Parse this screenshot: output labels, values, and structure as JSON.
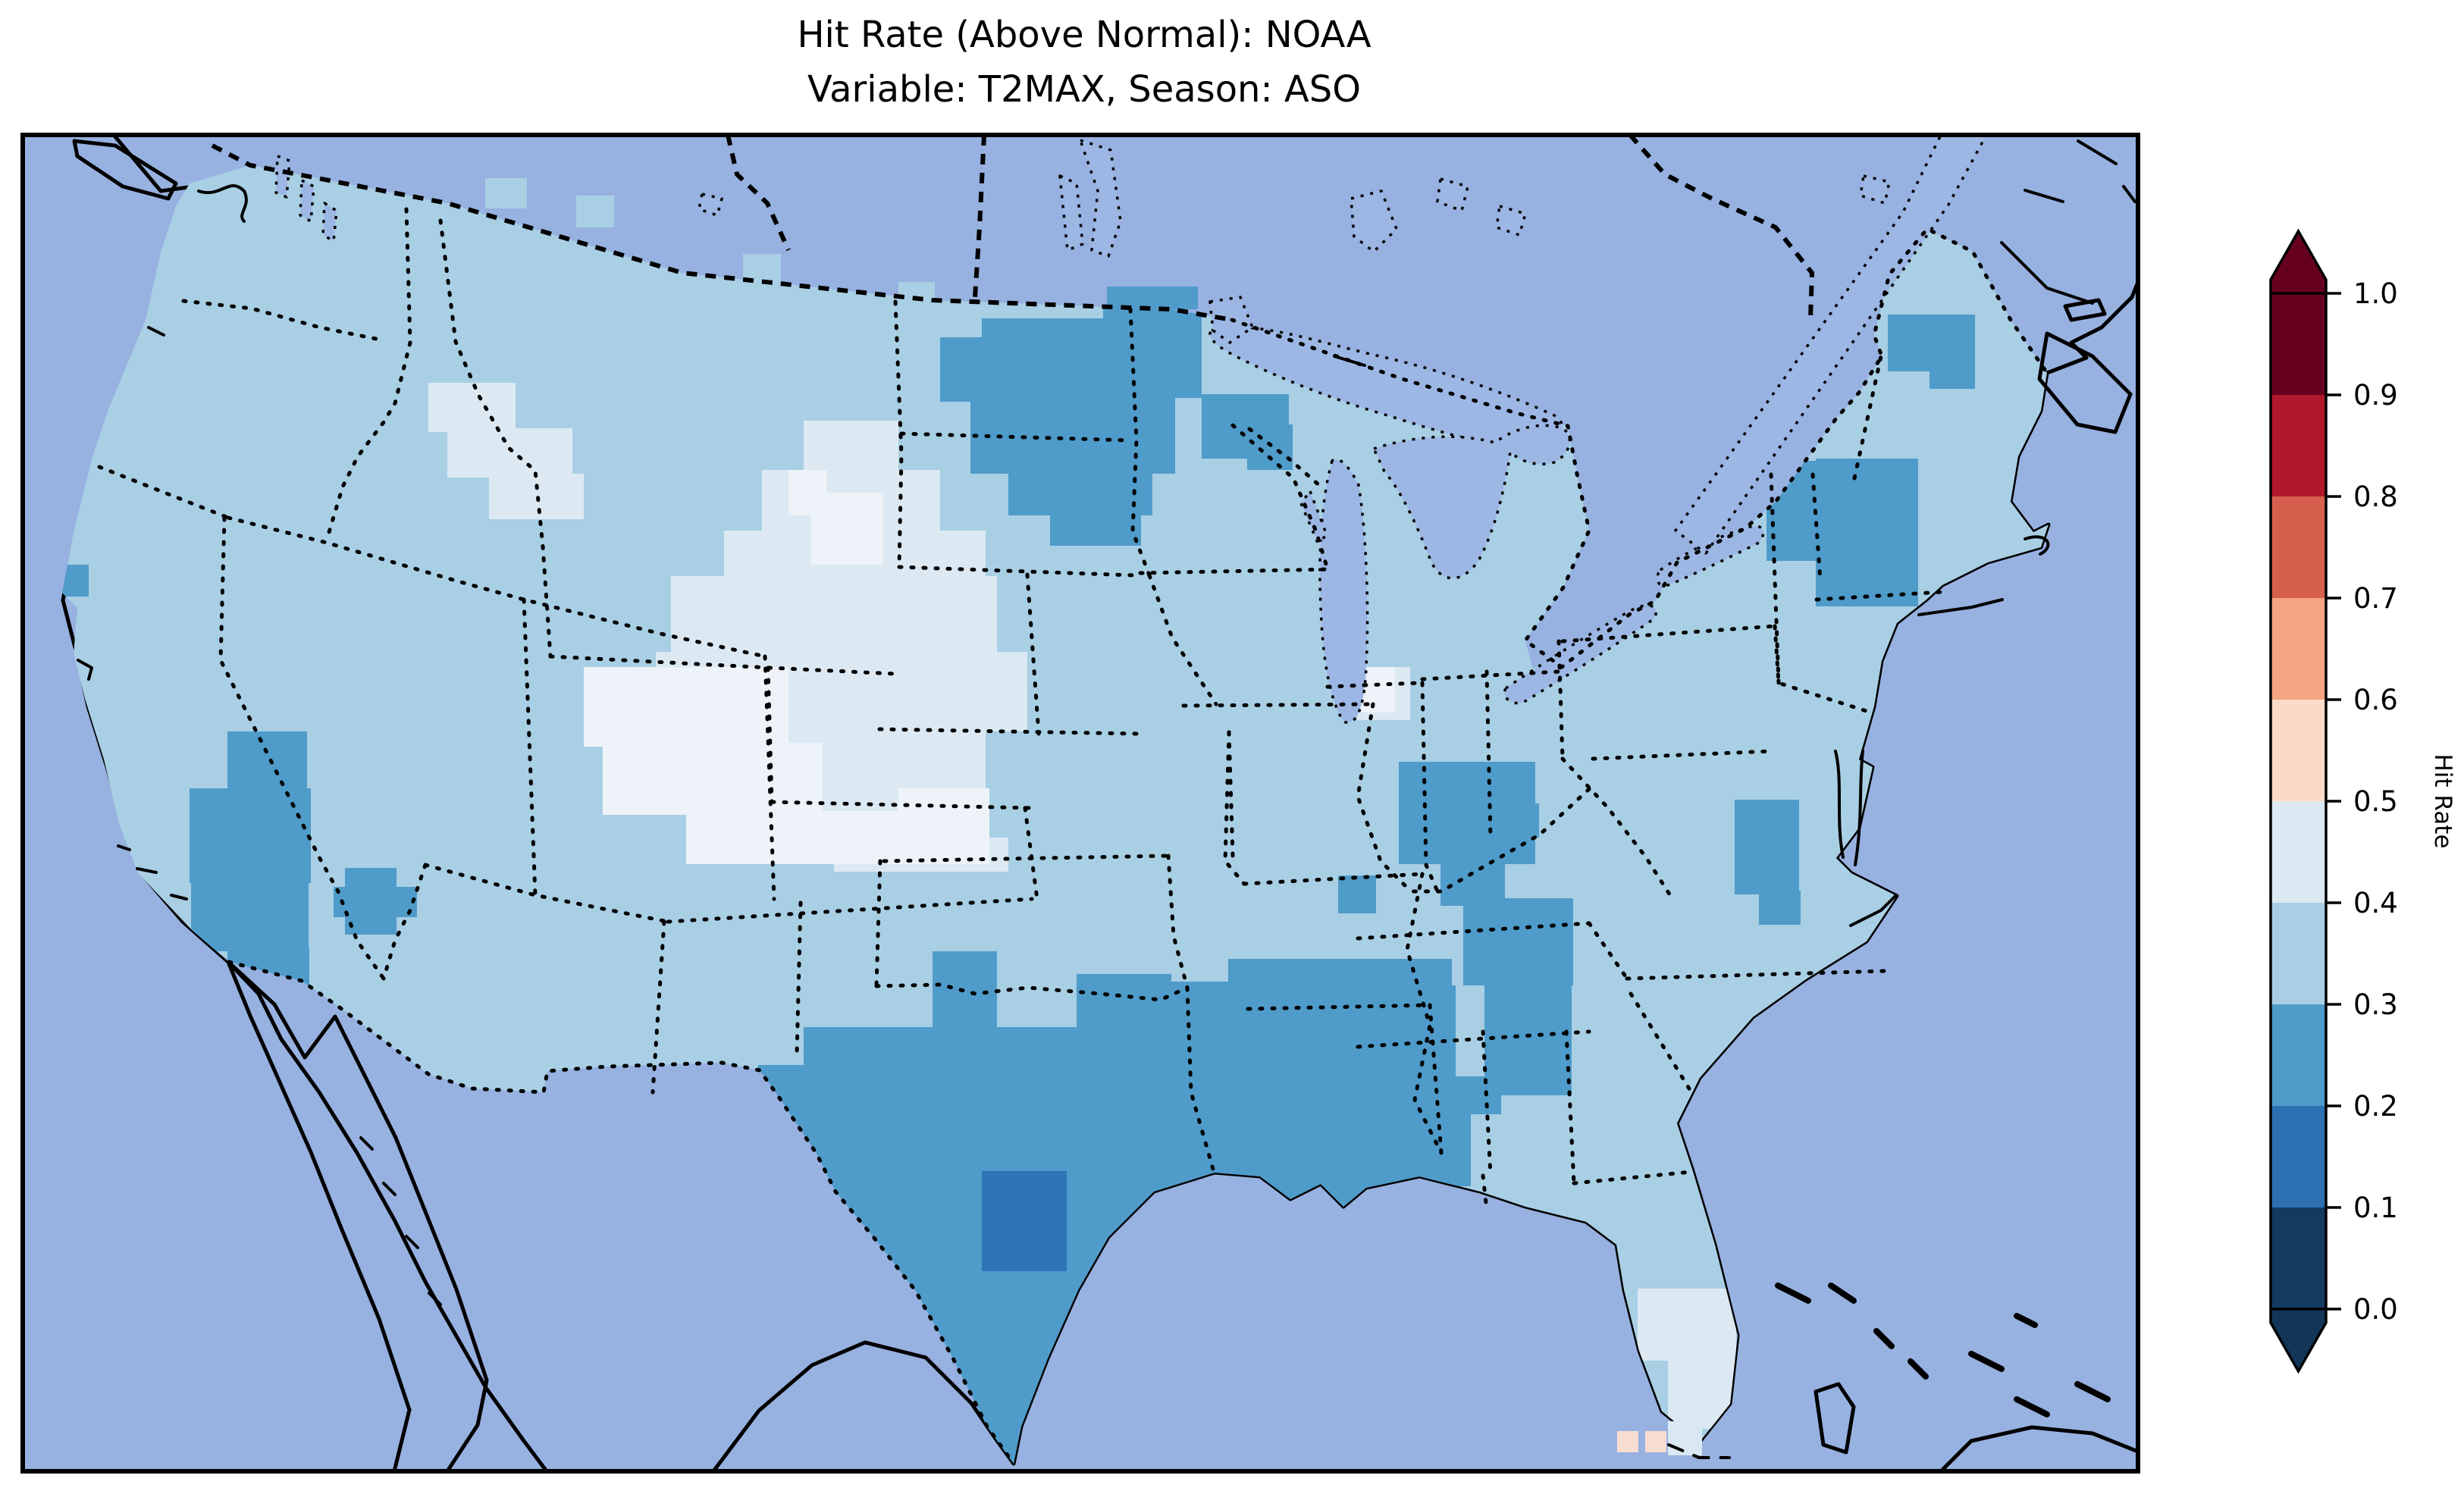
{
  "title": {
    "line1": "Hit Rate (Above Normal): NOAA",
    "line2": "Variable: T2MAX, Season: ASO"
  },
  "colorbar": {
    "label": "Hit Rate",
    "ticks": [
      "1.0",
      "0.9",
      "0.8",
      "0.7",
      "0.6",
      "0.5",
      "0.4",
      "0.3",
      "0.2",
      "0.1",
      "0.0"
    ],
    "segments": [
      {
        "range": "0.9-1.0",
        "color": "#67001f"
      },
      {
        "range": "0.8-0.9",
        "color": "#b2182b"
      },
      {
        "range": "0.7-0.8",
        "color": "#d6604d"
      },
      {
        "range": "0.6-0.7",
        "color": "#f4a582"
      },
      {
        "range": "0.5-0.6",
        "color": "#fbdbc7"
      },
      {
        "range": "0.4-0.5",
        "color": "#dce9f2"
      },
      {
        "range": "0.3-0.4",
        "color": "#a9cfe4"
      },
      {
        "range": "0.2-0.3",
        "color": "#4f9bca"
      },
      {
        "range": "0.1-0.2",
        "color": "#2d70b2"
      },
      {
        "range": "0.0-0.1",
        "color": "#133a61"
      }
    ],
    "extend_over_color": "#67001f",
    "extend_under_color": "#123658"
  },
  "map": {
    "colors": {
      "ocean": "#97b1e0",
      "land": "#f1eedb",
      "lakes": "#9db7e4",
      "frame": "#000000",
      "conus_base": "#a9cfe4"
    }
  },
  "chart_data": {
    "type": "heatmap",
    "title": "Hit Rate (Above Normal): NOAA",
    "subtitle": "Variable: T2MAX, Season: ASO",
    "metric": "Hit Rate (Above Normal)",
    "source": "NOAA",
    "variable": "T2MAX",
    "season": "ASO",
    "colorbar_label": "Hit Rate",
    "colorbar_range": [
      0.0,
      1.0
    ],
    "colorbar_tick_step": 0.1,
    "legend_position": "right",
    "bins": [
      {
        "range": [
          0.0,
          0.1
        ],
        "color": "#133a61"
      },
      {
        "range": [
          0.1,
          0.2
        ],
        "color": "#2d70b2"
      },
      {
        "range": [
          0.2,
          0.3
        ],
        "color": "#4f9bca"
      },
      {
        "range": [
          0.3,
          0.4
        ],
        "color": "#a9cfe4"
      },
      {
        "range": [
          0.4,
          0.5
        ],
        "color": "#dce9f2"
      },
      {
        "range": [
          0.5,
          0.6
        ],
        "color": "#fbdbc7"
      },
      {
        "range": [
          0.6,
          0.7
        ],
        "color": "#f4a582"
      },
      {
        "range": [
          0.7,
          0.8
        ],
        "color": "#d6604d"
      },
      {
        "range": [
          0.8,
          0.9
        ],
        "color": "#b2182b"
      },
      {
        "range": [
          0.9,
          1.0
        ],
        "color": "#67001f"
      }
    ],
    "base_region": {
      "name": "conus-most-areas",
      "hit_rate_bin": [
        0.3,
        0.4
      ],
      "color": "#a9cfe4"
    },
    "regions": [
      {
        "name": "northern-rockies-idaho-montana",
        "hit_rate_bin": [
          0.4,
          0.5
        ],
        "color": "#dce9f2",
        "clip": true,
        "rects": [
          [
            565,
            505,
            115,
            65
          ],
          [
            590,
            565,
            165,
            65
          ],
          [
            645,
            625,
            125,
            60
          ],
          [
            700,
            640,
            60,
            45
          ]
        ]
      },
      {
        "name": "central-plains-pale",
        "hit_rate_bin": [
          0.4,
          0.5
        ],
        "color": "#dce9f2",
        "clip": true,
        "rects": [
          [
            1060,
            555,
            125,
            70
          ],
          [
            1005,
            620,
            235,
            95
          ],
          [
            955,
            700,
            345,
            65
          ],
          [
            885,
            760,
            430,
            105
          ],
          [
            865,
            860,
            490,
            105
          ],
          [
            900,
            960,
            400,
            85
          ],
          [
            950,
            1040,
            330,
            70
          ],
          [
            1100,
            1105,
            230,
            45
          ],
          [
            1790,
            880,
            70,
            70
          ]
        ]
      },
      {
        "name": "plains-core-palest",
        "hit_rate_bin": [
          0.4,
          0.5
        ],
        "color": "#edf3f8",
        "clip": true,
        "rects": [
          [
            770,
            880,
            270,
            105
          ],
          [
            795,
            980,
            290,
            95
          ],
          [
            905,
            1070,
            400,
            70
          ],
          [
            1185,
            1040,
            120,
            95
          ],
          [
            1070,
            650,
            95,
            95
          ],
          [
            1040,
            620,
            50,
            60
          ],
          [
            1780,
            880,
            60,
            60
          ]
        ]
      },
      {
        "name": "south-florida-pale",
        "hit_rate_bin": [
          0.4,
          0.5
        ],
        "color": "#dce9f2",
        "clip": true,
        "rects": [
          [
            2160,
            1700,
            105,
            95
          ],
          [
            2200,
            1790,
            95,
            95
          ],
          [
            2120,
            1785,
            45,
            45
          ],
          [
            2250,
            1700,
            40,
            90
          ]
        ]
      },
      {
        "name": "minnesota-eastern-dakotas",
        "hit_rate_bin": [
          0.2,
          0.3
        ],
        "color": "#4f9bca",
        "clip": true,
        "rects": [
          [
            1455,
            385,
            130,
            65
          ],
          [
            1295,
            420,
            290,
            105
          ],
          [
            1240,
            445,
            100,
            85
          ],
          [
            1280,
            525,
            270,
            100
          ],
          [
            1330,
            620,
            190,
            60
          ],
          [
            1385,
            675,
            120,
            45
          ]
        ]
      },
      {
        "name": "upper-michigan",
        "hit_rate_bin": [
          0.2,
          0.3
        ],
        "color": "#4f9bca",
        "clip": true,
        "rects": [
          [
            1585,
            520,
            115,
            85
          ],
          [
            1645,
            560,
            60,
            60
          ]
        ]
      },
      {
        "name": "southern-nevada",
        "hit_rate_bin": [
          0.2,
          0.3
        ],
        "color": "#4f9bca",
        "clip": true,
        "rects": [
          [
            300,
            965,
            105,
            80
          ],
          [
            250,
            1040,
            160,
            125
          ],
          [
            252,
            1160,
            155,
            95
          ],
          [
            300,
            1250,
            108,
            78
          ]
        ]
      },
      {
        "name": "northwest-arizona",
        "hit_rate_bin": [
          0.2,
          0.3
        ],
        "color": "#4f9bca",
        "clip": true,
        "rects": [
          [
            455,
            1145,
            68,
            88
          ],
          [
            440,
            1170,
            110,
            40
          ]
        ]
      },
      {
        "name": "texas-gulf-south",
        "hit_rate_bin": [
          0.2,
          0.3
        ],
        "color": "#4f9bca",
        "clip": true,
        "rects": [
          [
            1060,
            1355,
            490,
            125
          ],
          [
            1230,
            1255,
            85,
            105
          ],
          [
            1420,
            1285,
            125,
            75
          ],
          [
            1000,
            1405,
            630,
            155
          ],
          [
            1050,
            1555,
            530,
            155
          ],
          [
            1100,
            1705,
            440,
            135
          ],
          [
            1180,
            1835,
            340,
            106
          ],
          [
            1440,
            1295,
            210,
            125
          ],
          [
            1620,
            1265,
            295,
            300
          ],
          [
            1600,
            1430,
            340,
            135
          ],
          [
            1660,
            1560,
            230,
            60
          ]
        ]
      },
      {
        "name": "mississippi-alabama",
        "hit_rate_bin": [
          0.2,
          0.3
        ],
        "color": "#4f9bca",
        "clip": true,
        "rects": [
          [
            1700,
            1300,
            220,
            190
          ],
          [
            1780,
            1480,
            150,
            80
          ]
        ]
      },
      {
        "name": "georgia-carolinas",
        "hit_rate_bin": [
          0.2,
          0.3
        ],
        "color": "#4f9bca",
        "clip": true,
        "rects": [
          [
            1930,
            1185,
            145,
            115
          ],
          [
            1958,
            1295,
            115,
            150
          ],
          [
            1900,
            1420,
            80,
            50
          ]
        ]
      },
      {
        "name": "kentucky-ohio-valley",
        "hit_rate_bin": [
          0.2,
          0.3
        ],
        "color": "#4f9bca",
        "clip": true,
        "rects": [
          [
            1845,
            1005,
            180,
            135
          ],
          [
            1900,
            1135,
            85,
            60
          ],
          [
            1765,
            1155,
            50,
            50
          ],
          [
            1985,
            1060,
            45,
            45
          ]
        ]
      },
      {
        "name": "chesapeake-delmarva",
        "hit_rate_bin": [
          0.2,
          0.3
        ],
        "color": "#4f9bca",
        "clip": true,
        "rects": [
          [
            2288,
            1055,
            85,
            125
          ],
          [
            2320,
            1175,
            55,
            45
          ]
        ]
      },
      {
        "name": "new-england",
        "hit_rate_bin": [
          0.2,
          0.3
        ],
        "color": "#4f9bca",
        "clip": true,
        "rects": [
          [
            2395,
            605,
            135,
            195
          ],
          [
            2330,
            655,
            75,
            85
          ],
          [
            2465,
            690,
            60,
            55
          ],
          [
            2490,
            415,
            115,
            75
          ],
          [
            2545,
            468,
            60,
            45
          ],
          [
            2330,
            608,
            70,
            50
          ]
        ]
      },
      {
        "name": "north-california-coast-cell",
        "hit_rate_bin": [
          0.2,
          0.3
        ],
        "color": "#4f9bca",
        "clip": true,
        "rects": [
          [
            75,
            745,
            42,
            42
          ]
        ]
      },
      {
        "name": "south-texas-core",
        "hit_rate_bin": [
          0.1,
          0.2
        ],
        "color": "#2e74b6",
        "clip": true,
        "rects": [
          [
            1295,
            1545,
            112,
            132
          ]
        ]
      },
      {
        "name": "florida-keys-cells",
        "hit_rate_bin": [
          0.5,
          0.6
        ],
        "color": "#f7ddd1",
        "clip": false,
        "rects": [
          [
            2133,
            1888,
            28,
            28
          ],
          [
            2170,
            1888,
            28,
            28
          ]
        ]
      },
      {
        "name": "florida-keys-pale-cell",
        "hit_rate_bin": [
          0.4,
          0.5
        ],
        "color": "#d9e8f2",
        "clip": false,
        "rects": [
          [
            2200,
            1875,
            45,
            45
          ]
        ]
      },
      {
        "name": "border-spill-cells",
        "hit_rate_bin": [
          0.3,
          0.4
        ],
        "color": "#a9cfe4",
        "clip": false,
        "rects": [
          [
            640,
            235,
            55,
            40
          ],
          [
            760,
            258,
            50,
            42
          ],
          [
            980,
            335,
            50,
            40
          ],
          [
            1185,
            372,
            48,
            38
          ],
          [
            500,
            300,
            45,
            40
          ]
        ]
      },
      {
        "name": "border-spill-dark",
        "hit_rate_bin": [
          0.2,
          0.3
        ],
        "color": "#4f9bca",
        "clip": false,
        "rects": [
          [
            1460,
            378,
            120,
            30
          ]
        ]
      }
    ]
  }
}
